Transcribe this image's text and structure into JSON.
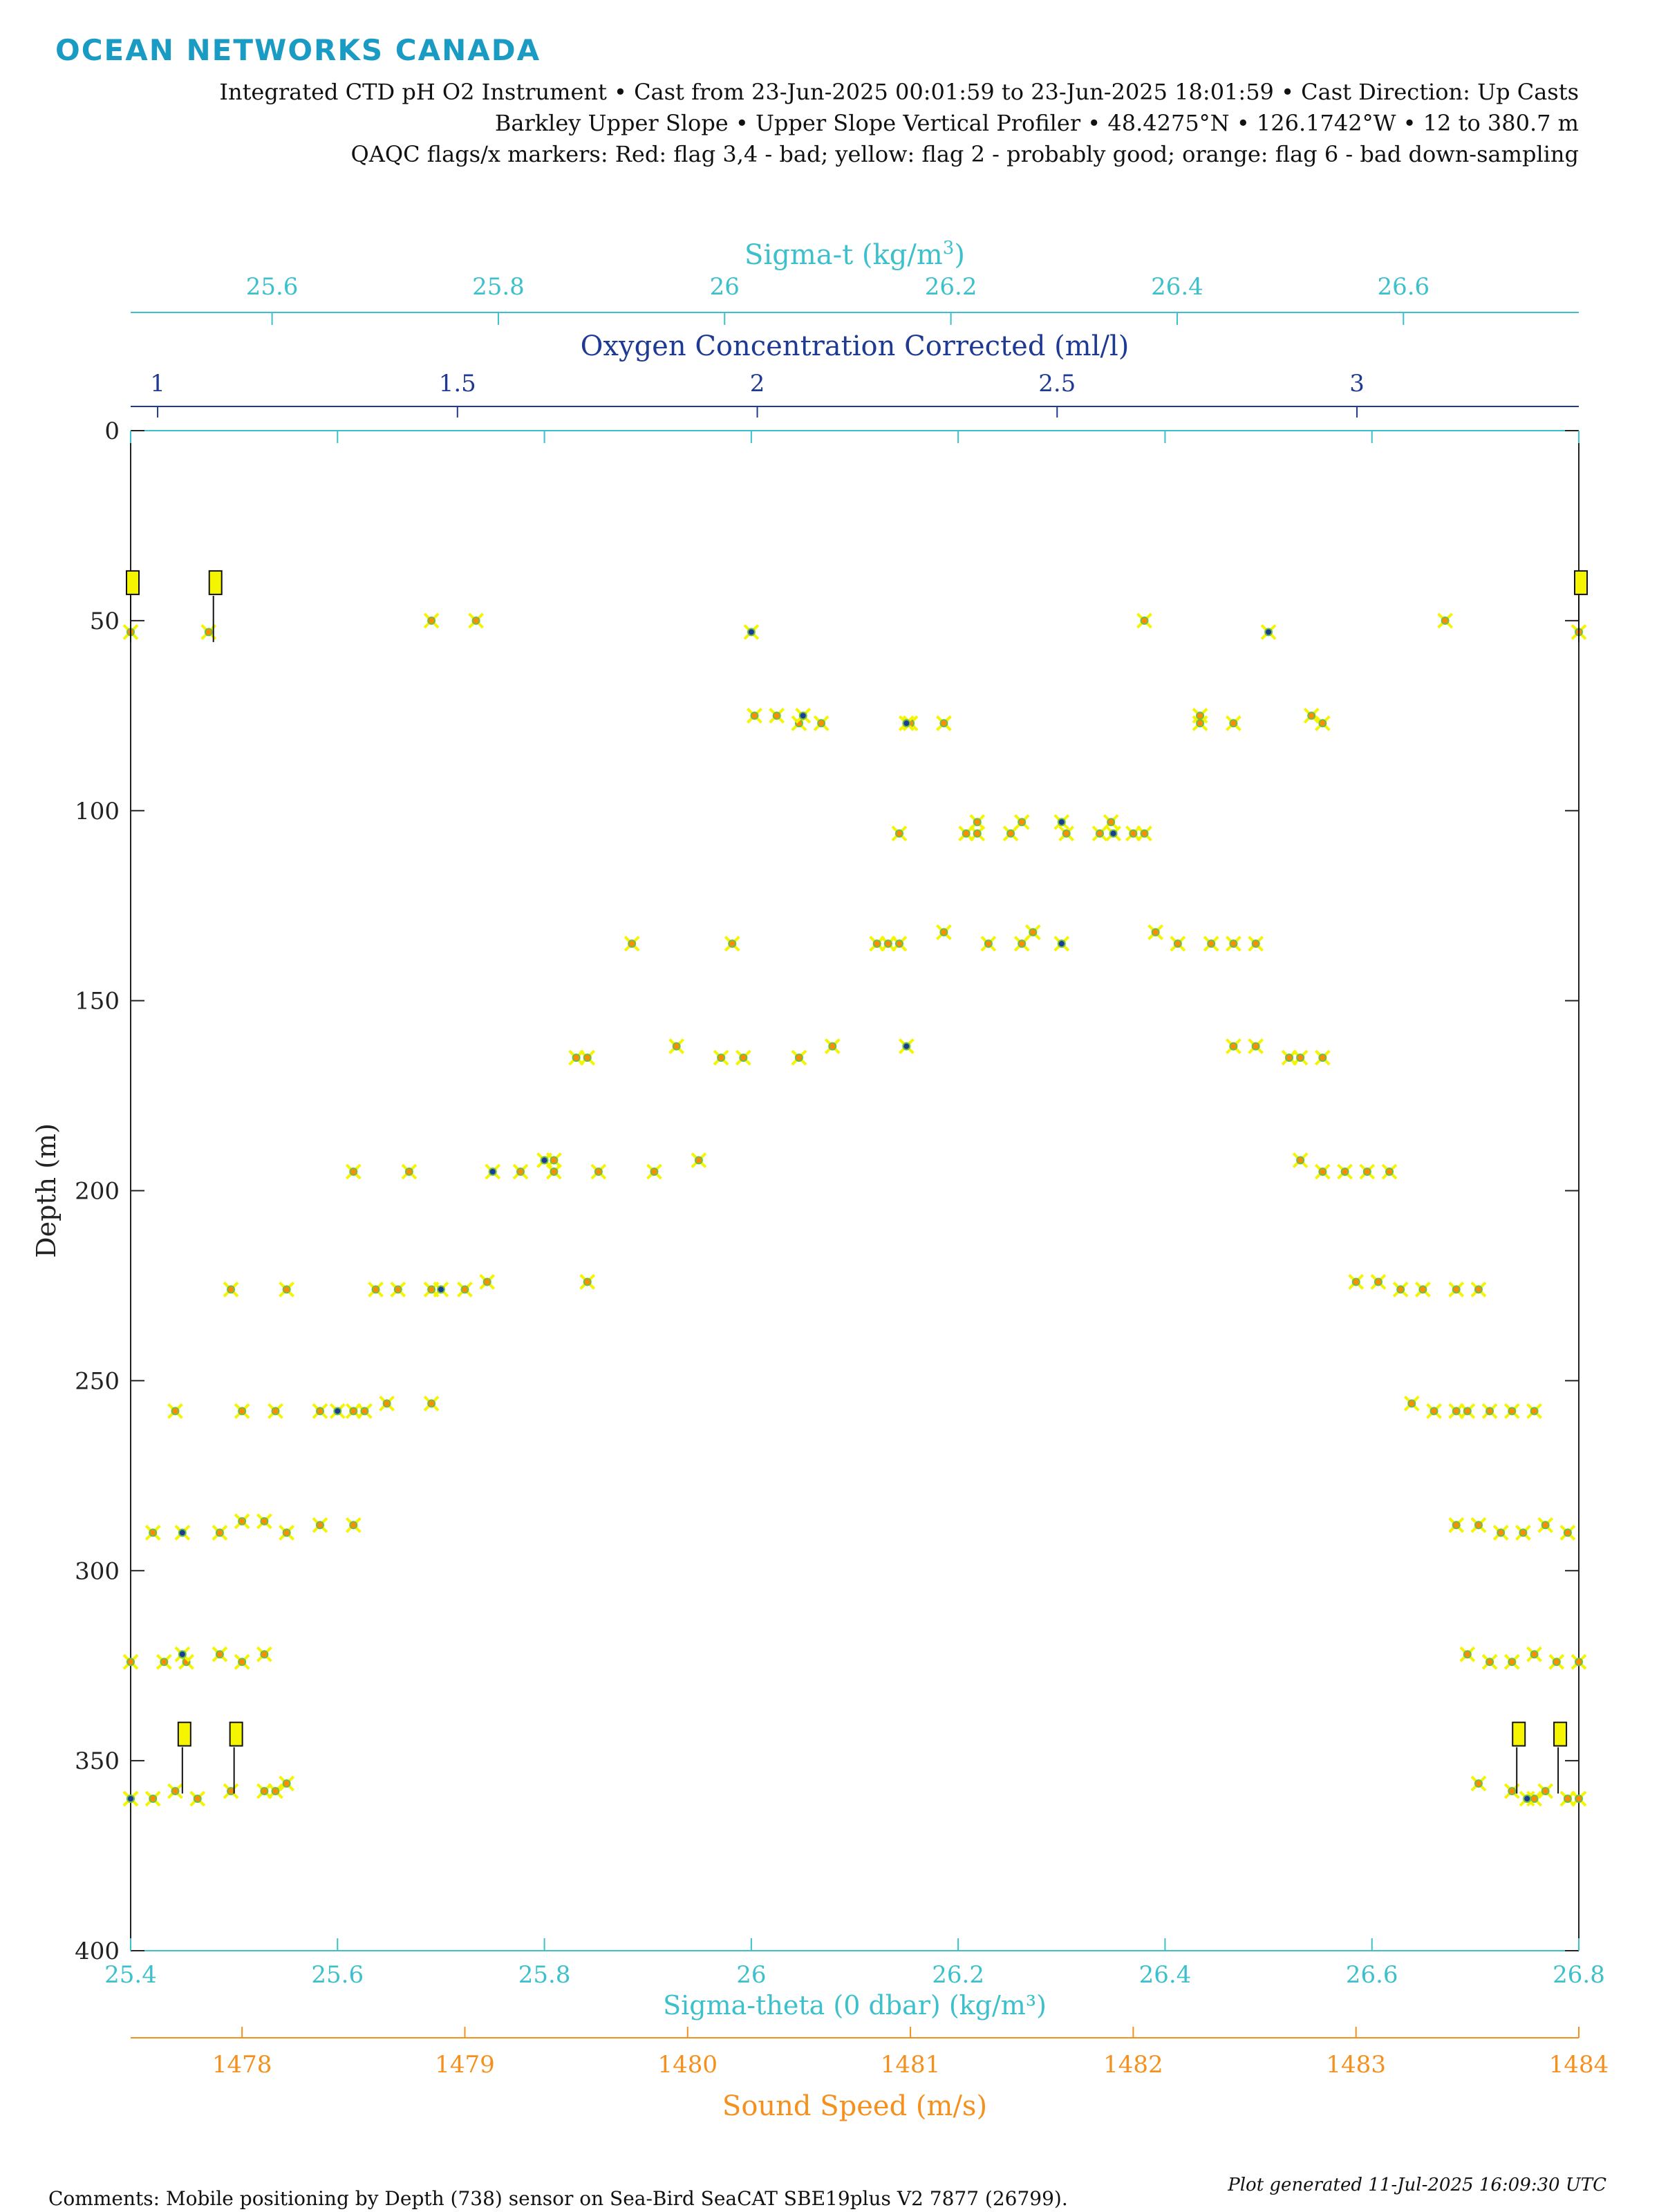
{
  "brand": "OCEAN NETWORKS CANADA",
  "header": {
    "line1": "Integrated CTD pH O2 Instrument • Cast from 23-Jun-2025 00:01:59 to 23-Jun-2025 18:01:59 • Cast Direction: Up Casts",
    "line2": "Barkley Upper Slope • Upper Slope Vertical Profiler • 48.4275°N • 126.1742°W • 12 to 380.7 m",
    "line3": "QAQC flags/x markers: Red: flag 3,4 - bad; yellow: flag 2 - probably good; orange: flag 6 - bad down-sampling"
  },
  "footer": {
    "comments": "Comments: Mobile positioning by Depth (738) sensor on Sea-Bird SeaCAT SBE19plus V2 7877 (26799).",
    "generated": "Plot generated 11-Jul-2025 16:09:30 UTC"
  },
  "colors": {
    "sigma": "#3cc0cc",
    "oxygen": "#1f3a93",
    "sound": "#f5901e",
    "axis": "#222222",
    "flag_good": "#f5f500",
    "flag_bad_downsample": "#ffa500"
  },
  "chart_data": {
    "type": "scatter",
    "y_axis": {
      "label": "Depth (m)",
      "range": [
        0,
        400
      ],
      "reversed": true,
      "ticks": [
        0,
        50,
        100,
        150,
        200,
        250,
        300,
        350,
        400
      ]
    },
    "x_axes": [
      {
        "key": "sigma_theta",
        "label": "Sigma-theta (0 dbar) (kg/m³)",
        "position": "bottom",
        "range": [
          25.4,
          26.8
        ],
        "ticks": [
          25.4,
          25.6,
          25.8,
          26,
          26.2,
          26.4,
          26.6,
          26.8
        ],
        "tick_labels": [
          "25.4",
          "25.6",
          "25.8",
          "26",
          "26.2",
          "26.4",
          "26.6",
          "26.8"
        ]
      },
      {
        "key": "sound_speed",
        "label": "Sound Speed (m/s)",
        "position": "bottom-secondary",
        "range": [
          1477.5,
          1484
        ],
        "ticks": [
          1478,
          1479,
          1480,
          1481,
          1482,
          1483,
          1484
        ],
        "tick_labels": [
          "1478",
          "1479",
          "1480",
          "1481",
          "1482",
          "1483",
          "1484"
        ]
      },
      {
        "key": "sigma_t",
        "label_main": "Sigma-t (kg/m",
        "label_sup": "3",
        "label_end": ")",
        "position": "top",
        "range": [
          25.475,
          26.755
        ],
        "ticks": [
          25.6,
          25.8,
          26,
          26.2,
          26.4,
          26.6
        ],
        "tick_labels": [
          "25.6",
          "25.8",
          "26",
          "26.2",
          "26.4",
          "26.6"
        ]
      },
      {
        "key": "oxygen",
        "label": "Oxygen Concentration Corrected (ml/l)",
        "position": "top-secondary",
        "range": [
          0.955,
          3.37
        ],
        "ticks": [
          1,
          1.5,
          2,
          2.5,
          3
        ],
        "tick_labels": [
          "1",
          "1.5",
          "2",
          "2.5",
          "3"
        ]
      }
    ],
    "grid": false,
    "series": [
      {
        "axis": "sound_speed",
        "color": "orange",
        "points": [
          [
            1477.5,
            53
          ],
          [
            1477.85,
            53
          ],
          [
            1478.85,
            50
          ],
          [
            1479.05,
            50
          ],
          [
            1482.05,
            50
          ],
          [
            1483.4,
            50
          ],
          [
            1484.0,
            53
          ],
          [
            1480.3,
            75
          ],
          [
            1480.4,
            75
          ],
          [
            1480.5,
            77
          ],
          [
            1480.6,
            77
          ],
          [
            1481.15,
            77
          ],
          [
            1481.0,
            77
          ],
          [
            1482.3,
            75
          ],
          [
            1482.3,
            77
          ],
          [
            1482.45,
            77
          ],
          [
            1482.85,
            77
          ],
          [
            1482.8,
            75
          ],
          [
            1481.3,
            103
          ],
          [
            1481.5,
            103
          ],
          [
            1481.9,
            103
          ],
          [
            1481.3,
            106
          ],
          [
            1481.45,
            106
          ],
          [
            1480.95,
            106
          ],
          [
            1481.25,
            106
          ],
          [
            1481.7,
            106
          ],
          [
            1481.85,
            106
          ],
          [
            1482.0,
            106
          ],
          [
            1482.05,
            106
          ],
          [
            1479.75,
            135
          ],
          [
            1480.2,
            135
          ],
          [
            1480.85,
            135
          ],
          [
            1480.95,
            135
          ],
          [
            1480.9,
            135
          ],
          [
            1481.15,
            132
          ],
          [
            1481.55,
            132
          ],
          [
            1481.35,
            135
          ],
          [
            1481.5,
            135
          ],
          [
            1482.1,
            132
          ],
          [
            1482.2,
            135
          ],
          [
            1482.35,
            135
          ],
          [
            1482.45,
            135
          ],
          [
            1482.55,
            135
          ],
          [
            1479.5,
            165
          ],
          [
            1479.55,
            165
          ],
          [
            1479.95,
            162
          ],
          [
            1480.15,
            165
          ],
          [
            1480.25,
            165
          ],
          [
            1480.5,
            165
          ],
          [
            1480.65,
            162
          ],
          [
            1482.45,
            162
          ],
          [
            1482.55,
            162
          ],
          [
            1482.7,
            165
          ],
          [
            1482.85,
            165
          ],
          [
            1482.75,
            165
          ],
          [
            1478.5,
            195
          ],
          [
            1478.75,
            195
          ],
          [
            1479.25,
            195
          ],
          [
            1479.4,
            192
          ],
          [
            1479.4,
            195
          ],
          [
            1479.6,
            195
          ],
          [
            1479.85,
            195
          ],
          [
            1480.05,
            192
          ],
          [
            1482.75,
            192
          ],
          [
            1482.85,
            195
          ],
          [
            1482.95,
            195
          ],
          [
            1483.05,
            195
          ],
          [
            1483.15,
            195
          ],
          [
            1477.95,
            226
          ],
          [
            1478.2,
            226
          ],
          [
            1478.6,
            226
          ],
          [
            1478.7,
            226
          ],
          [
            1478.85,
            226
          ],
          [
            1479.0,
            226
          ],
          [
            1479.1,
            224
          ],
          [
            1479.55,
            224
          ],
          [
            1483.0,
            224
          ],
          [
            1483.1,
            224
          ],
          [
            1483.2,
            226
          ],
          [
            1483.3,
            226
          ],
          [
            1483.45,
            226
          ],
          [
            1483.55,
            226
          ],
          [
            1477.7,
            258
          ],
          [
            1478.0,
            258
          ],
          [
            1478.15,
            258
          ],
          [
            1478.35,
            258
          ],
          [
            1478.5,
            258
          ],
          [
            1478.55,
            258
          ],
          [
            1478.65,
            256
          ],
          [
            1478.85,
            256
          ],
          [
            1483.25,
            256
          ],
          [
            1483.35,
            258
          ],
          [
            1483.45,
            258
          ],
          [
            1483.5,
            258
          ],
          [
            1483.6,
            258
          ],
          [
            1483.7,
            258
          ],
          [
            1483.8,
            258
          ],
          [
            1477.6,
            290
          ],
          [
            1477.9,
            290
          ],
          [
            1478.0,
            287
          ],
          [
            1478.1,
            287
          ],
          [
            1478.2,
            290
          ],
          [
            1478.35,
            288
          ],
          [
            1478.5,
            288
          ],
          [
            1483.45,
            288
          ],
          [
            1483.55,
            288
          ],
          [
            1483.65,
            290
          ],
          [
            1483.75,
            290
          ],
          [
            1483.85,
            288
          ],
          [
            1483.95,
            290
          ],
          [
            1477.5,
            324
          ],
          [
            1477.65,
            324
          ],
          [
            1477.75,
            324
          ],
          [
            1477.9,
            322
          ],
          [
            1478.0,
            324
          ],
          [
            1478.1,
            322
          ],
          [
            1483.5,
            322
          ],
          [
            1483.6,
            324
          ],
          [
            1483.7,
            324
          ],
          [
            1483.8,
            322
          ],
          [
            1483.9,
            324
          ],
          [
            1484.0,
            324
          ],
          [
            1477.5,
            360
          ],
          [
            1477.6,
            360
          ],
          [
            1477.7,
            358
          ],
          [
            1477.8,
            360
          ],
          [
            1477.95,
            358
          ],
          [
            1478.1,
            358
          ],
          [
            1478.15,
            358
          ],
          [
            1478.2,
            356
          ],
          [
            1483.55,
            356
          ],
          [
            1483.7,
            358
          ],
          [
            1483.8,
            360
          ],
          [
            1483.85,
            358
          ],
          [
            1483.95,
            360
          ],
          [
            1484.0,
            360
          ]
        ]
      },
      {
        "axis": "sigma_theta",
        "color": "blue",
        "points": [
          [
            26.0,
            53
          ],
          [
            26.5,
            53
          ],
          [
            26.05,
            75
          ],
          [
            26.15,
            77
          ],
          [
            26.3,
            103
          ],
          [
            26.35,
            106
          ],
          [
            26.3,
            135
          ],
          [
            26.15,
            162
          ],
          [
            25.8,
            192
          ],
          [
            25.75,
            195
          ],
          [
            25.7,
            226
          ],
          [
            25.6,
            258
          ],
          [
            25.45,
            290
          ],
          [
            25.45,
            322
          ],
          [
            25.4,
            360
          ],
          [
            26.75,
            360
          ]
        ]
      }
    ],
    "qaqc_flags": [
      {
        "position": [
          25.4,
          42
        ],
        "flag": "yellow"
      },
      {
        "position": [
          25.48,
          42
        ],
        "flag": "yellow"
      },
      {
        "position": [
          26.8,
          42
        ],
        "flag": "yellow"
      },
      {
        "position": [
          25.45,
          345
        ],
        "flag": "yellow"
      },
      {
        "position": [
          25.5,
          345
        ],
        "flag": "yellow"
      },
      {
        "position": [
          26.74,
          345
        ],
        "flag": "yellow"
      },
      {
        "position": [
          26.78,
          345
        ],
        "flag": "yellow"
      }
    ]
  }
}
